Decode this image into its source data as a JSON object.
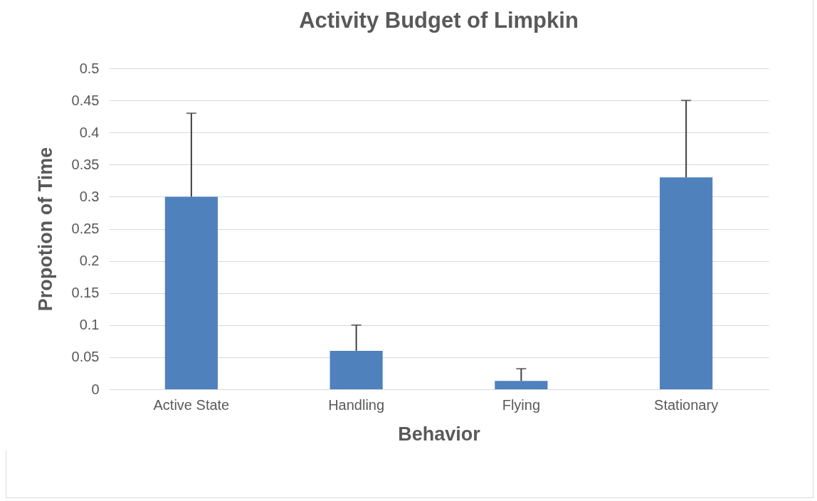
{
  "chart_data": {
    "type": "bar",
    "title": "Activity Budget of Limpkin",
    "xlabel": "Behavior",
    "ylabel": "Propotion of Time",
    "categories": [
      "Active State",
      "Handling",
      "Flying",
      "Stationary"
    ],
    "values": [
      0.3,
      0.06,
      0.013,
      0.33
    ],
    "errors": [
      [
        0.3,
        0.43
      ],
      [
        0.06,
        0.1
      ],
      [
        0.013,
        0.032
      ],
      [
        0.33,
        0.45
      ]
    ],
    "color": "#4f81bd",
    "ylim": [
      0,
      0.5
    ],
    "yticks": [
      0,
      0.05,
      0.1,
      0.15,
      0.2,
      0.25,
      0.3,
      0.35,
      0.4,
      0.45,
      0.5
    ],
    "grid": "y"
  }
}
